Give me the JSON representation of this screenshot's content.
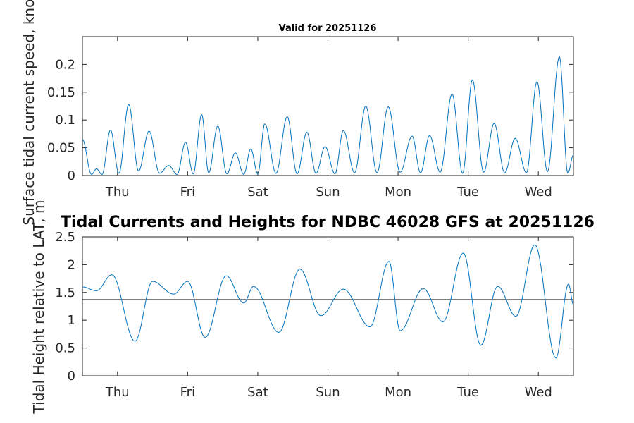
{
  "chart_data": [
    {
      "type": "line",
      "title": "Valid for 20251126",
      "ylabel": "Surface tidal current speed, knots",
      "xlabel": "",
      "categories": [
        "Thu",
        "Fri",
        "Sat",
        "Sun",
        "Mon",
        "Tue",
        "Wed"
      ],
      "xlim": [
        0,
        7
      ],
      "ylim": [
        0,
        0.25
      ],
      "yticks": [
        0,
        0.05,
        0.1,
        0.15,
        0.2
      ],
      "ytick_labels": [
        "0",
        "0.05",
        "0.1",
        "0.15",
        "0.2"
      ],
      "series": [
        {
          "name": "Tidal current speed",
          "color": "#0072bd",
          "x": [
            0.0,
            0.13,
            0.2,
            0.28,
            0.4,
            0.52,
            0.66,
            0.8,
            0.95,
            1.1,
            1.23,
            1.35,
            1.47,
            1.58,
            1.7,
            1.8,
            1.93,
            2.06,
            2.18,
            2.3,
            2.4,
            2.5,
            2.6,
            2.76,
            2.92,
            3.06,
            3.2,
            3.33,
            3.46,
            3.6,
            3.72,
            3.88,
            4.04,
            4.2,
            4.36,
            4.53,
            4.7,
            4.82,
            4.95,
            5.1,
            5.27,
            5.42,
            5.56,
            5.72,
            5.87,
            6.02,
            6.17,
            6.33,
            6.48,
            6.63,
            6.8,
            6.92,
            7.0
          ],
          "y": [
            0.065,
            0.002,
            0.012,
            0.002,
            0.082,
            0.004,
            0.128,
            0.008,
            0.08,
            0.004,
            0.018,
            0.002,
            0.06,
            0.003,
            0.11,
            0.005,
            0.089,
            0.003,
            0.041,
            0.002,
            0.048,
            0.003,
            0.093,
            0.004,
            0.106,
            0.003,
            0.078,
            0.004,
            0.052,
            0.003,
            0.081,
            0.005,
            0.125,
            0.005,
            0.124,
            0.006,
            0.071,
            0.005,
            0.072,
            0.006,
            0.147,
            0.004,
            0.172,
            0.006,
            0.094,
            0.005,
            0.067,
            0.005,
            0.169,
            0.007,
            0.214,
            0.004,
            0.037
          ]
        }
      ]
    },
    {
      "type": "line",
      "title": "Tidal Currents and Heights for NDBC 46028 GFS at 20251126",
      "ylabel": "Tidal Height relative to LAT, m",
      "xlabel": "",
      "categories": [
        "Thu",
        "Fri",
        "Sat",
        "Sun",
        "Mon",
        "Tue",
        "Wed"
      ],
      "xlim": [
        0,
        7
      ],
      "ylim": [
        0,
        2.5
      ],
      "yticks": [
        0,
        0.5,
        1,
        1.5,
        2,
        2.5
      ],
      "ytick_labels": [
        "0",
        "0.5",
        "1",
        "1.5",
        "2",
        "2.5"
      ],
      "reference_line": 1.37,
      "reference_color": "#000000",
      "series": [
        {
          "name": "Tidal height",
          "color": "#0072bd",
          "x": [
            0.0,
            0.2,
            0.42,
            0.75,
            1.0,
            1.3,
            1.5,
            1.75,
            2.05,
            2.3,
            2.44,
            2.8,
            3.1,
            3.4,
            3.72,
            4.1,
            4.37,
            4.53,
            4.86,
            5.14,
            5.43,
            5.68,
            5.92,
            6.18,
            6.45,
            6.75,
            6.93,
            7.0
          ],
          "y": [
            1.6,
            1.53,
            1.82,
            0.62,
            1.7,
            1.47,
            1.7,
            0.69,
            1.8,
            1.31,
            1.61,
            0.78,
            1.92,
            1.08,
            1.56,
            0.88,
            2.06,
            0.81,
            1.57,
            0.97,
            2.21,
            0.55,
            1.61,
            1.07,
            2.36,
            0.32,
            1.65,
            1.28
          ]
        }
      ]
    }
  ]
}
